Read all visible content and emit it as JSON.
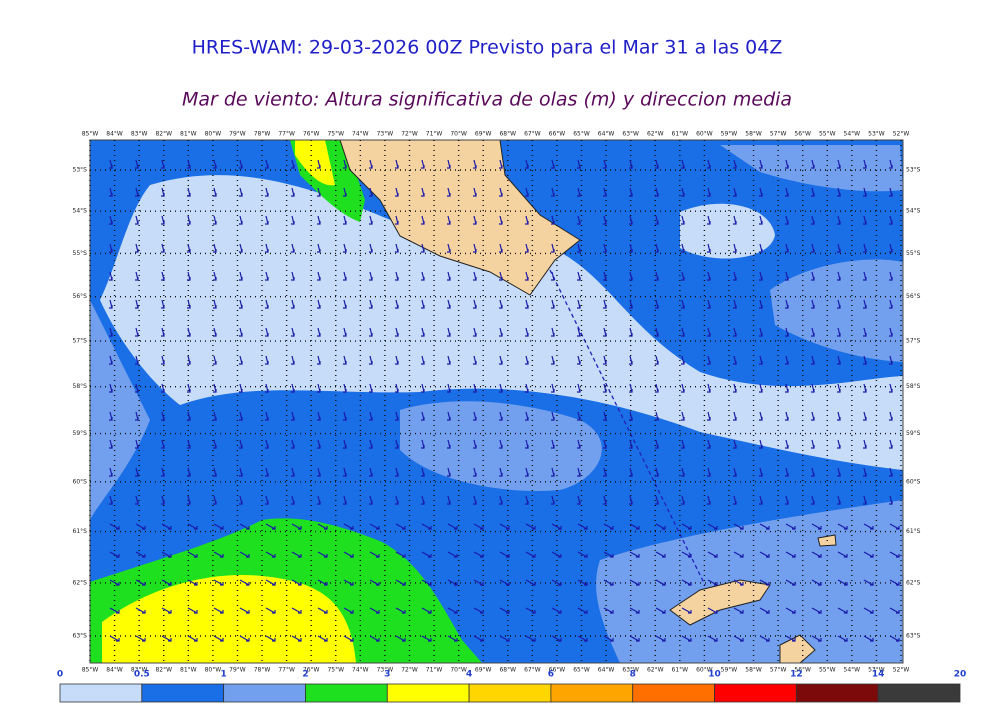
{
  "title": "HRES-WAM: 29-03-2026 00Z Previsto para el Mar 31 a las 04Z",
  "subtitle": "Mar de viento: Altura significativa de olas (m) y direccion media",
  "map": {
    "lon_ticks": [
      {
        "value": -85,
        "label": "85°W"
      },
      {
        "value": -84,
        "label": "84°W"
      },
      {
        "value": -83,
        "label": "83°W"
      },
      {
        "value": -82,
        "label": "82°W"
      },
      {
        "value": -81,
        "label": "81°W"
      },
      {
        "value": -80,
        "label": "80°W"
      },
      {
        "value": -79,
        "label": "79°W"
      },
      {
        "value": -78,
        "label": "78°W"
      },
      {
        "value": -77,
        "label": "77°W"
      },
      {
        "value": -76,
        "label": "76°W"
      },
      {
        "value": -75,
        "label": "75°W"
      },
      {
        "value": -74,
        "label": "74°W"
      },
      {
        "value": -73,
        "label": "73°W"
      },
      {
        "value": -72,
        "label": "72°W"
      },
      {
        "value": -71,
        "label": "71°W"
      },
      {
        "value": -70,
        "label": "70°W"
      },
      {
        "value": -69,
        "label": "69°W"
      },
      {
        "value": -68,
        "label": "68°W"
      },
      {
        "value": -67,
        "label": "67°W"
      },
      {
        "value": -66,
        "label": "66°W"
      },
      {
        "value": -65,
        "label": "65°W"
      },
      {
        "value": -64,
        "label": "64°W"
      },
      {
        "value": -63,
        "label": "63°W"
      },
      {
        "value": -62,
        "label": "62°W"
      },
      {
        "value": -61,
        "label": "61°W"
      },
      {
        "value": -60,
        "label": "60°W"
      },
      {
        "value": -59,
        "label": "59°W"
      },
      {
        "value": -58,
        "label": "58°W"
      },
      {
        "value": -57,
        "label": "57°W"
      },
      {
        "value": -56,
        "label": "56°W"
      },
      {
        "value": -55,
        "label": "55°W"
      },
      {
        "value": -54,
        "label": "54°W"
      },
      {
        "value": -53,
        "label": "53°W"
      },
      {
        "value": -52,
        "label": "52°W"
      }
    ],
    "lat_ticks": [
      {
        "value": -53,
        "label": "53°S"
      },
      {
        "value": -54,
        "label": "54°S"
      },
      {
        "value": -55,
        "label": "55°S"
      },
      {
        "value": -56,
        "label": "56°S"
      },
      {
        "value": -57,
        "label": "57°S"
      },
      {
        "value": -58,
        "label": "58°S"
      },
      {
        "value": -59,
        "label": "59°S"
      },
      {
        "value": -60,
        "label": "60°S"
      },
      {
        "value": -61,
        "label": "61°S"
      },
      {
        "value": -62,
        "label": "62°S"
      },
      {
        "value": -63,
        "label": "63°S"
      }
    ]
  },
  "colorbar": {
    "ticks": [
      0,
      0.5,
      1,
      2,
      3,
      4,
      6,
      8,
      10,
      12,
      14,
      20
    ],
    "colors": [
      "#c6dcf8",
      "#1a6ee6",
      "#72a0ee",
      "#1fe01f",
      "#ffff00",
      "#ffd600",
      "#ffa500",
      "#ff6f00",
      "#ff0000",
      "#7d0a0a",
      "#3a3a3a"
    ]
  }
}
